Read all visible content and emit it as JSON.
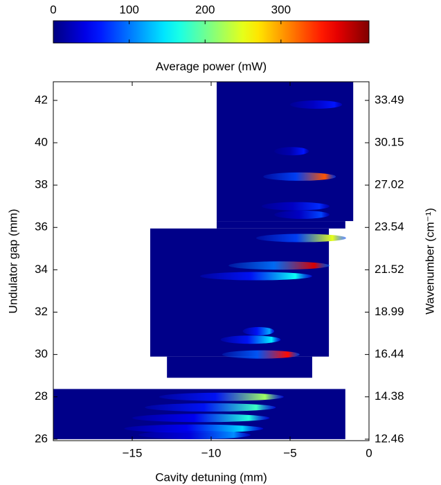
{
  "chart_data": {
    "type": "heatmap",
    "colorbar": {
      "label": "Average power (mW)",
      "lim": [
        0,
        416
      ],
      "ticks": [
        0,
        100,
        200,
        300
      ]
    },
    "x_label": "Cavity detuning (mm)",
    "y_label": "Undulator gap (mm)",
    "y2_label": "Wavenumber (cm⁻¹)",
    "xlim": [
      -20,
      0
    ],
    "xticks": [
      {
        "value": -15,
        "label": "−15"
      },
      {
        "value": -10,
        "label": "−10"
      },
      {
        "value": -5,
        "label": "−5"
      },
      0
    ],
    "ylim": [
      25.93,
      42.88
    ],
    "yticks": [
      26,
      28,
      30,
      32,
      34,
      36,
      38,
      40,
      42
    ],
    "y2ticks": [
      12.46,
      14.38,
      16.44,
      18.99,
      21.52,
      23.54,
      27.02,
      30.15,
      33.49
    ],
    "regions": [
      {
        "x": [
          -9.65,
          -1.0
        ],
        "y": [
          36.3,
          42.88
        ],
        "value": 4
      },
      {
        "x": [
          -9.65,
          -1.5
        ],
        "y": [
          35.95,
          36.3
        ],
        "value": 4
      },
      {
        "x": [
          -13.86,
          -2.54
        ],
        "y": [
          29.9,
          35.95
        ],
        "value": 4
      },
      {
        "x": [
          -12.8,
          -3.6
        ],
        "y": [
          28.9,
          29.9
        ],
        "value": 4
      },
      {
        "x": [
          -20,
          -1.5
        ],
        "y": [
          26.0,
          28.37
        ],
        "value": 4
      }
    ],
    "streaks": [
      {
        "x": [
          -5.0,
          -1.7
        ],
        "y": 41.8,
        "values": [
          30,
          60
        ]
      },
      {
        "x": [
          -6.0,
          -3.8
        ],
        "y": 39.6,
        "values": [
          20,
          60
        ]
      },
      {
        "x": [
          -6.7,
          -2.1
        ],
        "y": 38.4,
        "values": [
          80,
          330
        ]
      },
      {
        "x": [
          -6.8,
          -2.5
        ],
        "y": 37.0,
        "values": [
          30,
          70
        ]
      },
      {
        "x": [
          -6.0,
          -2.5
        ],
        "y": 36.6,
        "values": [
          30,
          80
        ]
      },
      {
        "x": [
          -7.15,
          -1.45
        ],
        "y": 35.5,
        "values": [
          80,
          250
        ]
      },
      {
        "x": [
          -8.9,
          -2.5
        ],
        "y": 34.2,
        "values": [
          100,
          380
        ]
      },
      {
        "x": [
          -10.7,
          -3.6
        ],
        "y": 33.7,
        "values": [
          60,
          160
        ]
      },
      {
        "x": [
          -8.0,
          -6.0
        ],
        "y": 31.1,
        "values": [
          60,
          120
        ]
      },
      {
        "x": [
          -9.4,
          -5.6
        ],
        "y": 30.7,
        "values": [
          60,
          150
        ]
      },
      {
        "x": [
          -9.3,
          -4.4
        ],
        "y": 30.0,
        "values": [
          90,
          360
        ]
      },
      {
        "x": [
          -13.3,
          -5.4
        ],
        "y": 28.0,
        "values": [
          60,
          220
        ]
      },
      {
        "x": [
          -14.2,
          -5.9
        ],
        "y": 27.5,
        "values": [
          60,
          180
        ]
      },
      {
        "x": [
          -15.0,
          -6.3
        ],
        "y": 27.0,
        "values": [
          50,
          170
        ]
      },
      {
        "x": [
          -15.5,
          -6.7
        ],
        "y": 26.5,
        "values": [
          50,
          140
        ]
      },
      {
        "x": [
          -14.6,
          -7.5
        ],
        "y": 26.2,
        "values": [
          40,
          110
        ]
      }
    ]
  }
}
